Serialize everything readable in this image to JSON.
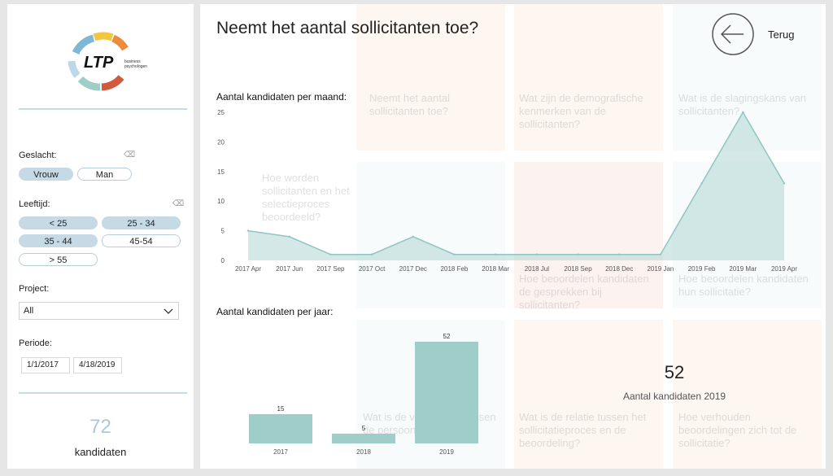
{
  "sidebar": {
    "logo": {
      "text": "LTP",
      "sub1": "business",
      "sub2": "psychologen"
    },
    "gender": {
      "label": "Geslacht:",
      "options": [
        {
          "label": "Vrouw",
          "selected": true
        },
        {
          "label": "Man",
          "selected": false
        }
      ]
    },
    "age": {
      "label": "Leeftijd:",
      "options": [
        {
          "label": "< 25",
          "selected": true
        },
        {
          "label": "25 - 34",
          "selected": true
        },
        {
          "label": "35 - 44",
          "selected": true
        },
        {
          "label": "45-54",
          "selected": false
        },
        {
          "label": "> 55",
          "selected": false
        }
      ]
    },
    "project": {
      "label": "Project:",
      "value": "All"
    },
    "period": {
      "label": "Periode:",
      "start": "1/1/2017",
      "end": "4/18/2019"
    },
    "kpi": {
      "value": "72",
      "label": "kandidaten"
    }
  },
  "main": {
    "title": "Neemt het aantal sollicitanten toe?",
    "back_label": "Terug",
    "monthly_title": "Aantal kandidaten per maand:",
    "yearly_title": "Aantal kandidaten per jaar:",
    "card": {
      "value": "52",
      "label": "Aantal kandidaten 2019"
    },
    "bg_texts": [
      "Neemt het aantal sollicitanten toe?",
      "Wat zijn de demografische kenmerken van de sollicitanten?",
      "Wat is de slagingskans van sollicitanten?",
      "Hoe worden sollicitanten en het selectieproces beoordeeld?",
      "Hoe beoordelen kandidaten de gesprekken bij sollicitanten?",
      "Hoe beoordelen kandidaten hun sollicitatie?",
      "Wat is de verhouding tussen de persoonlijkheid?",
      "Wat is de relatie tussen het sollicitatieproces en de beoordeling?",
      "Hoe verhouden beoordelingen zich tot de sollicitatie?"
    ]
  },
  "colors": {
    "accent": "#a9d4d0",
    "line": "#8fc6c2",
    "bar": "#9fcdc9",
    "pill_selected": "#c6dae6"
  },
  "chart_data": [
    {
      "type": "area",
      "title": "Aantal kandidaten per maand:",
      "categories": [
        "2017 Apr",
        "2017 Jun",
        "2017 Sep",
        "2017 Oct",
        "2017 Dec",
        "2018 Feb",
        "2018 Mar",
        "2018 Jul",
        "2018 Sep",
        "2018 Dec",
        "2019 Jan",
        "2019 Feb",
        "2019 Mar",
        "2019 Apr"
      ],
      "values": [
        5,
        4,
        1,
        1,
        4,
        1,
        1,
        1,
        1,
        1,
        1,
        13,
        25,
        13
      ],
      "ylim": [
        0,
        25
      ],
      "yticks": [
        0,
        5,
        10,
        15,
        20,
        25
      ],
      "grid": false
    },
    {
      "type": "bar",
      "title": "Aantal kandidaten per jaar:",
      "categories": [
        "2017",
        "2018",
        "2019"
      ],
      "values": [
        15,
        5,
        52
      ],
      "labels": [
        "15",
        "5",
        "52"
      ]
    }
  ]
}
